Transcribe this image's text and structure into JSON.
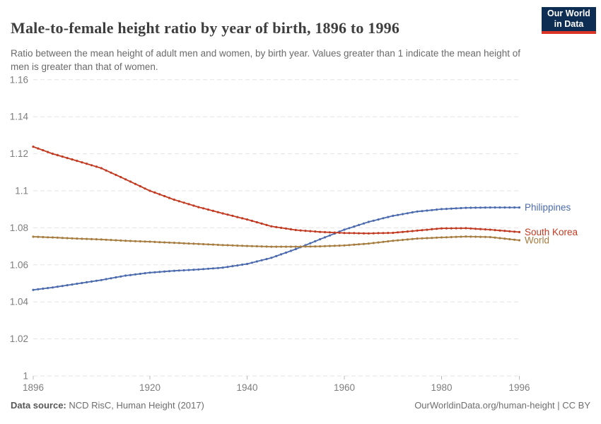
{
  "header": {
    "title": "Male-to-female height ratio by year of birth, 1896 to 1996",
    "subtitle": "Ratio between the mean height of adult men and women, by birth year. Values greater than 1 indicate the mean height of men is greater than that of women.",
    "logo": {
      "line1": "Our World",
      "line2": "in Data"
    }
  },
  "footer": {
    "datasource_label": "Data source:",
    "datasource_text": " NCD RisC, Human Height (2017)",
    "credit": "OurWorldinData.org/human-height | CC BY"
  },
  "colors": {
    "grid": "#e3e3e3",
    "tick": "#b8b8b8",
    "axis_label": "#7d7d7d",
    "logo_bg": "#0d2e52",
    "logo_stripe": "#dc3327"
  },
  "chart_data": {
    "type": "line",
    "title": "Male-to-female height ratio by year of birth, 1896 to 1996",
    "xlabel": "",
    "ylabel": "",
    "x_range": [
      1896,
      1996
    ],
    "ylim": [
      1,
      1.16
    ],
    "grid": "dashed-horizontal",
    "legend_position": "end-of-line-labels-right",
    "marker": "point-per-year",
    "y_ticks": [
      {
        "value": 1.16,
        "label": "1.16"
      },
      {
        "value": 1.14,
        "label": "1.14"
      },
      {
        "value": 1.12,
        "label": "1.12"
      },
      {
        "value": 1.1,
        "label": "1.1"
      },
      {
        "value": 1.08,
        "label": "1.08"
      },
      {
        "value": 1.06,
        "label": "1.06"
      },
      {
        "value": 1.04,
        "label": "1.04"
      },
      {
        "value": 1.02,
        "label": "1.02"
      },
      {
        "value": 1.0,
        "label": "1"
      }
    ],
    "x_ticks": [
      {
        "value": 1896,
        "label": "1896"
      },
      {
        "value": 1920,
        "label": "1920"
      },
      {
        "value": 1940,
        "label": "1940"
      },
      {
        "value": 1960,
        "label": "1960"
      },
      {
        "value": 1980,
        "label": "1980"
      },
      {
        "value": 1996,
        "label": "1996"
      }
    ],
    "years": [
      1896,
      1900,
      1905,
      1910,
      1915,
      1920,
      1925,
      1930,
      1935,
      1940,
      1945,
      1950,
      1955,
      1960,
      1965,
      1970,
      1975,
      1980,
      1985,
      1990,
      1996
    ],
    "series": [
      {
        "name": "Philippines",
        "color": "#4c6bae",
        "values": [
          1.0465,
          1.0478,
          1.0498,
          1.0518,
          1.0542,
          1.0558,
          1.0568,
          1.0575,
          1.0585,
          1.0605,
          1.0638,
          1.0685,
          1.0738,
          1.079,
          1.0832,
          1.0865,
          1.0888,
          1.0901,
          1.0908,
          1.091,
          1.091
        ]
      },
      {
        "name": "South Korea",
        "color": "#c23a21",
        "values": [
          1.1238,
          1.12,
          1.1162,
          1.1122,
          1.1062,
          1.1,
          1.0952,
          1.0912,
          1.0878,
          1.0845,
          1.0808,
          1.0788,
          1.0778,
          1.0772,
          1.077,
          1.0773,
          1.0785,
          1.0797,
          1.0798,
          1.079,
          1.0777
        ]
      },
      {
        "name": "World",
        "color": "#a67c3f",
        "values": [
          1.0752,
          1.0748,
          1.0742,
          1.0737,
          1.073,
          1.0725,
          1.0719,
          1.0713,
          1.0707,
          1.0702,
          1.0698,
          1.0698,
          1.07,
          1.0705,
          1.0715,
          1.073,
          1.0742,
          1.0748,
          1.0753,
          1.075,
          1.0733
        ]
      }
    ]
  }
}
